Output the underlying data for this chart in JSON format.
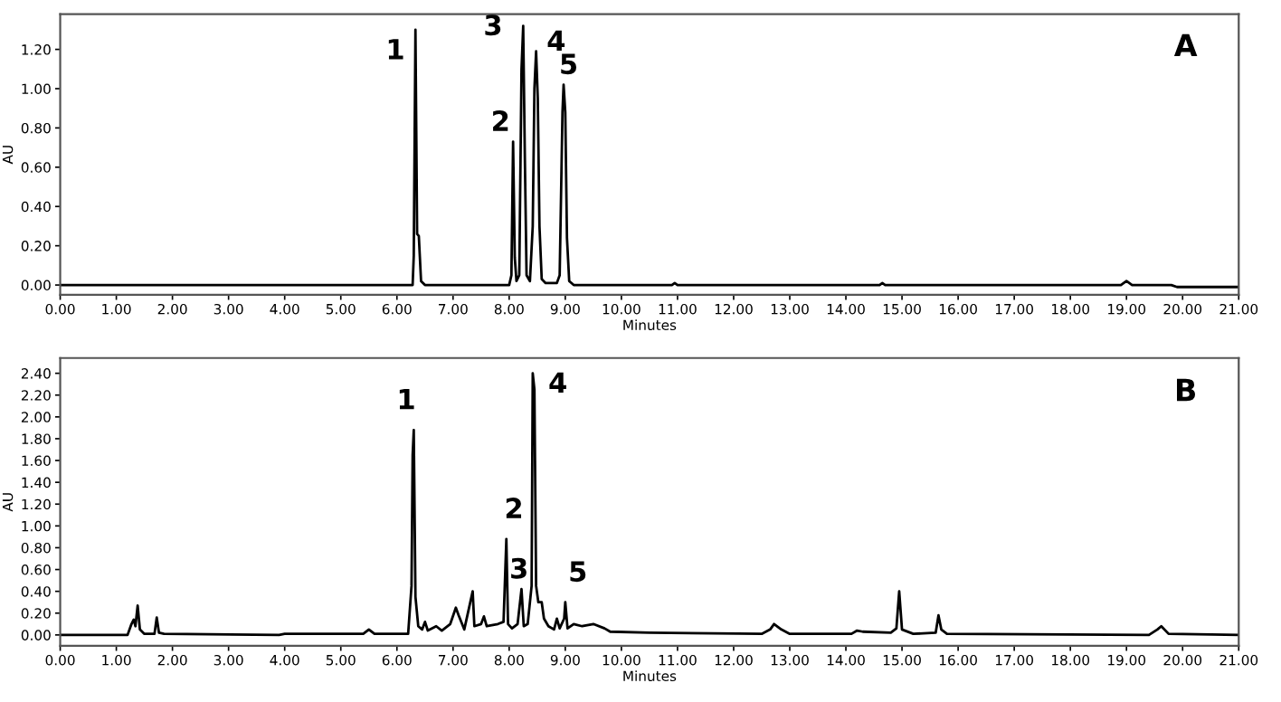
{
  "chart_data": [
    {
      "type": "line",
      "xlabel": "Minutes",
      "ylabel": "AU",
      "xlim": [
        0,
        21
      ],
      "ylim": [
        -0.05,
        1.38
      ],
      "xticks": [
        {
          "value": 0,
          "label": "0.00"
        },
        {
          "value": 1,
          "label": "1.00"
        },
        {
          "value": 2,
          "label": "2.00"
        },
        {
          "value": 3,
          "label": "3.00"
        },
        {
          "value": 4,
          "label": "4.00"
        },
        {
          "value": 5,
          "label": "5.00"
        },
        {
          "value": 6,
          "label": "6.00"
        },
        {
          "value": 7,
          "label": "7.00"
        },
        {
          "value": 8,
          "label": "8.00"
        },
        {
          "value": 9,
          "label": "9.00"
        },
        {
          "value": 10,
          "label": "10.00"
        },
        {
          "value": 11,
          "label": "11.00"
        },
        {
          "value": 12,
          "label": "12.00"
        },
        {
          "value": 13,
          "label": "13.00"
        },
        {
          "value": 14,
          "label": "14.00"
        },
        {
          "value": 15,
          "label": "15.00"
        },
        {
          "value": 16,
          "label": "16.00"
        },
        {
          "value": 17,
          "label": "17.00"
        },
        {
          "value": 18,
          "label": "18.00"
        },
        {
          "value": 19,
          "label": "19.00"
        },
        {
          "value": 20,
          "label": "20.00"
        },
        {
          "value": 21,
          "label": "21.00"
        }
      ],
      "yticks": [
        {
          "value": 0,
          "label": "0.00"
        },
        {
          "value": 0.2,
          "label": "0.20"
        },
        {
          "value": 0.4,
          "label": "0.40"
        },
        {
          "value": 0.6,
          "label": "0.60"
        },
        {
          "value": 0.8,
          "label": "0.80"
        },
        {
          "value": 1.0,
          "label": "1.00"
        },
        {
          "value": 1.2,
          "label": "1.20"
        }
      ],
      "grid": false,
      "legend": false,
      "series": [
        {
          "color": "#000000",
          "x": [
            0,
            6.2,
            6.28,
            6.3,
            6.33,
            6.36,
            6.39,
            6.43,
            6.5,
            8.0,
            8.04,
            8.07,
            8.1,
            8.13,
            8.18,
            8.22,
            8.25,
            8.28,
            8.31,
            8.37,
            8.42,
            8.45,
            8.48,
            8.51,
            8.54,
            8.58,
            8.65,
            8.85,
            8.9,
            8.95,
            8.97,
            9.0,
            9.03,
            9.07,
            9.15,
            10.9,
            10.95,
            11.0,
            14.6,
            14.65,
            14.7,
            18.9,
            19.0,
            19.1,
            19.8,
            19.9,
            21
          ],
          "values": [
            0,
            0,
            0,
            0.15,
            1.3,
            0.26,
            0.25,
            0.02,
            0,
            0,
            0.05,
            0.73,
            0.14,
            0.02,
            0.05,
            1.1,
            1.32,
            0.64,
            0.05,
            0.02,
            0.3,
            1.0,
            1.19,
            0.95,
            0.3,
            0.03,
            0.01,
            0.01,
            0.05,
            0.88,
            1.02,
            0.88,
            0.24,
            0.02,
            0,
            0,
            0.01,
            0,
            0,
            0.01,
            0,
            0,
            0.02,
            0,
            0,
            -0.01,
            -0.01
          ]
        }
      ],
      "annotations": [
        {
          "text": "1",
          "x": 6.33,
          "y": 1.3
        },
        {
          "text": "2",
          "x": 8.07,
          "y": 0.73
        },
        {
          "text": "3",
          "x": 8.25,
          "y": 1.32
        },
        {
          "text": "4",
          "x": 8.48,
          "y": 1.19
        },
        {
          "text": "5",
          "x": 8.97,
          "y": 1.02
        },
        "A"
      ]
    },
    {
      "type": "line",
      "xlabel": "Minutes",
      "ylabel": "AU",
      "xlim": [
        0,
        21
      ],
      "ylim": [
        -0.1,
        2.54
      ],
      "xticks": [
        {
          "value": 0,
          "label": "0.00"
        },
        {
          "value": 1,
          "label": "1.00"
        },
        {
          "value": 2,
          "label": "2.00"
        },
        {
          "value": 3,
          "label": "3.00"
        },
        {
          "value": 4,
          "label": "4.00"
        },
        {
          "value": 5,
          "label": "5.00"
        },
        {
          "value": 6,
          "label": "6.00"
        },
        {
          "value": 7,
          "label": "7.00"
        },
        {
          "value": 8,
          "label": "8.00"
        },
        {
          "value": 9,
          "label": "9.00"
        },
        {
          "value": 10,
          "label": "10.00"
        },
        {
          "value": 11,
          "label": "11.00"
        },
        {
          "value": 12,
          "label": "12.00"
        },
        {
          "value": 13,
          "label": "13.00"
        },
        {
          "value": 14,
          "label": "14.00"
        },
        {
          "value": 15,
          "label": "15.00"
        },
        {
          "value": 16,
          "label": "16.00"
        },
        {
          "value": 17,
          "label": "17.00"
        },
        {
          "value": 18,
          "label": "18.00"
        },
        {
          "value": 19,
          "label": "19.00"
        },
        {
          "value": 20,
          "label": "20.00"
        },
        {
          "value": 21,
          "label": "21.00"
        }
      ],
      "yticks": [
        {
          "value": 0,
          "label": "0.00"
        },
        {
          "value": 0.2,
          "label": "0.20"
        },
        {
          "value": 0.4,
          "label": "0.40"
        },
        {
          "value": 0.6,
          "label": "0.60"
        },
        {
          "value": 0.8,
          "label": "0.80"
        },
        {
          "value": 1.0,
          "label": "1.00"
        },
        {
          "value": 1.2,
          "label": "1.20"
        },
        {
          "value": 1.4,
          "label": "1.40"
        },
        {
          "value": 1.6,
          "label": "1.60"
        },
        {
          "value": 1.8,
          "label": "1.80"
        },
        {
          "value": 2.0,
          "label": "2.00"
        },
        {
          "value": 2.2,
          "label": "2.20"
        },
        {
          "value": 2.4,
          "label": "2.40"
        }
      ],
      "grid": false,
      "legend": false,
      "series": [
        {
          "color": "#000000",
          "x": [
            0,
            1.2,
            1.27,
            1.31,
            1.34,
            1.38,
            1.42,
            1.5,
            1.68,
            1.72,
            1.76,
            1.85,
            3.9,
            4.0,
            5.4,
            5.5,
            5.6,
            6.2,
            6.26,
            6.28,
            6.3,
            6.33,
            6.38,
            6.45,
            6.5,
            6.55,
            6.7,
            6.8,
            6.95,
            7.05,
            7.1,
            7.2,
            7.35,
            7.38,
            7.5,
            7.55,
            7.6,
            7.8,
            7.9,
            7.95,
            7.98,
            8.05,
            8.15,
            8.22,
            8.26,
            8.33,
            8.4,
            8.42,
            8.45,
            8.48,
            8.52,
            8.58,
            8.62,
            8.7,
            8.8,
            8.85,
            8.9,
            8.98,
            9.0,
            9.04,
            9.15,
            9.3,
            9.5,
            9.7,
            9.8,
            10.5,
            12.5,
            12.65,
            12.72,
            12.85,
            13.0,
            14.1,
            14.2,
            14.3,
            14.8,
            14.9,
            14.95,
            15.0,
            15.2,
            15.6,
            15.65,
            15.7,
            15.8,
            19.4,
            19.55,
            19.62,
            19.75,
            21
          ],
          "values": [
            0,
            0,
            0.1,
            0.14,
            0.08,
            0.27,
            0.05,
            0.01,
            0.01,
            0.16,
            0.02,
            0.01,
            0,
            0.01,
            0.01,
            0.05,
            0.01,
            0.01,
            0.45,
            1.65,
            1.88,
            0.35,
            0.08,
            0.05,
            0.12,
            0.04,
            0.08,
            0.04,
            0.1,
            0.25,
            0.18,
            0.05,
            0.4,
            0.08,
            0.1,
            0.17,
            0.08,
            0.1,
            0.12,
            0.88,
            0.1,
            0.06,
            0.1,
            0.42,
            0.08,
            0.1,
            0.45,
            2.4,
            2.25,
            0.45,
            0.3,
            0.3,
            0.15,
            0.08,
            0.05,
            0.15,
            0.06,
            0.15,
            0.3,
            0.06,
            0.1,
            0.08,
            0.1,
            0.06,
            0.03,
            0.02,
            0.01,
            0.05,
            0.1,
            0.05,
            0.01,
            0.01,
            0.04,
            0.03,
            0.02,
            0.06,
            0.4,
            0.05,
            0.01,
            0.02,
            0.18,
            0.05,
            0.01,
            0,
            0.05,
            0.08,
            0.01,
            0
          ]
        }
      ],
      "annotations": [
        {
          "text": "1",
          "x": 6.3,
          "y": 1.88
        },
        {
          "text": "2",
          "x": 7.95,
          "y": 0.88
        },
        {
          "text": "3",
          "x": 8.22,
          "y": 0.42
        },
        {
          "text": "4",
          "x": 8.42,
          "y": 2.4
        },
        {
          "text": "5",
          "x": 9.0,
          "y": 0.3
        },
        "B"
      ]
    }
  ]
}
